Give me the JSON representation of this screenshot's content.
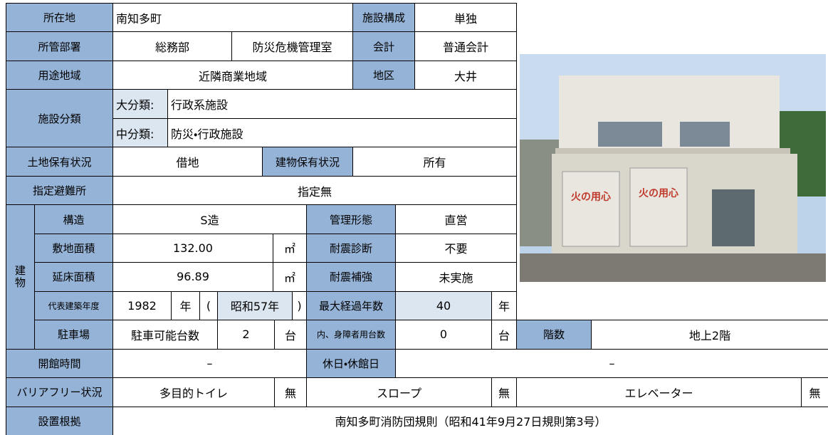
{
  "table": {
    "rows": [
      [
        "所在地",
        "南知多町",
        "施設構成",
        "単独"
      ],
      [
        "所管部署",
        "総務部",
        "防災危機管理室",
        "会計",
        "普通会計"
      ],
      [
        "用途地域",
        "近隣商業地域",
        "地区",
        "大井"
      ],
      [
        "大分類:",
        "行政系施設"
      ],
      [
        "中分類:",
        "防災・行政施設"
      ],
      [
        "土地保有状況",
        "借地",
        "建物保有状況",
        "所有"
      ],
      [
        "指定避難所",
        "指定無"
      ],
      [
        "構造",
        "S造",
        "管理形態",
        "直営"
      ],
      [
        "敷地面積",
        "132.00",
        "㎡",
        "耐震診断",
        "不要"
      ],
      [
        "延床面積",
        "96.89",
        "㎡",
        "耐震補強",
        "未実施"
      ],
      [
        "代表建築年度",
        "1982",
        "年",
        "(",
        "昭和57年",
        ")",
        "最大経過年数",
        "40",
        "年"
      ],
      [
        "駐車場",
        "駐車可能台数",
        "2",
        "台",
        "内、身障者用台数",
        "0",
        "台",
        "階数",
        "地上2階"
      ],
      [
        "開館時間",
        "–",
        "休日・休館日",
        "–"
      ],
      [
        "バリアフリー状況",
        "多目的トイレ",
        "無",
        "スロープ",
        "無",
        "エレベーター",
        "無"
      ],
      [
        "設置根拠",
        "南知多町消防団規則（昭和41年9月27日規則第3号）"
      ]
    ],
    "facility_class_label": "施設分類",
    "building_label": "建物"
  }
}
